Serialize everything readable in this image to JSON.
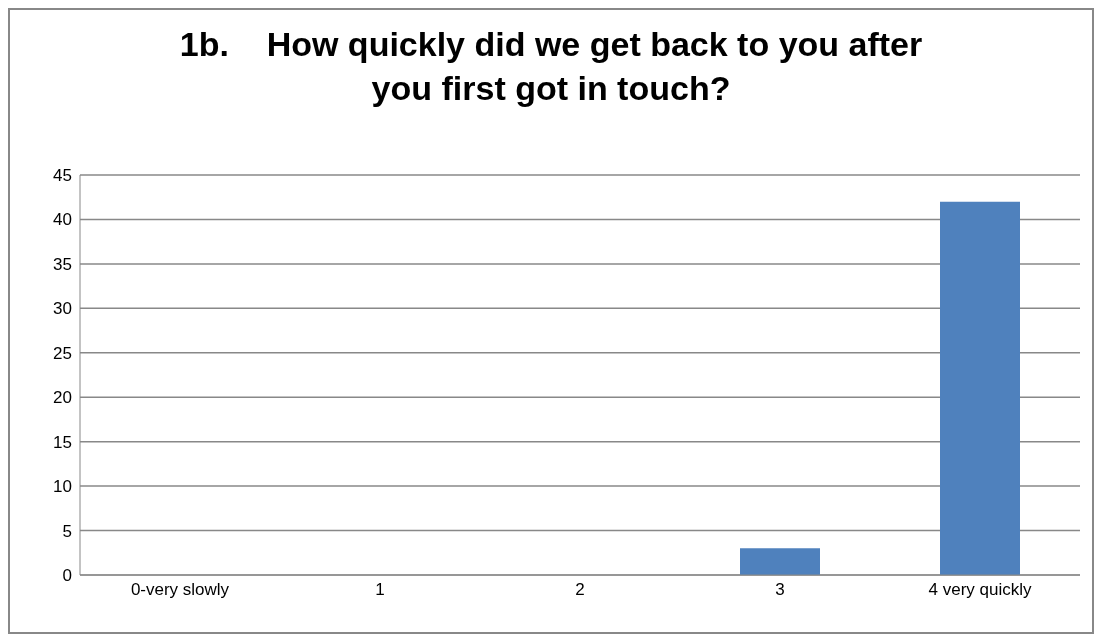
{
  "chart_data": {
    "type": "bar",
    "title": "1b.    How quickly did we get back to you after you first got in touch?",
    "categories": [
      "0-very slowly",
      "1",
      "2",
      "3",
      "4 very quickly"
    ],
    "values": [
      0,
      0,
      0,
      3,
      42
    ],
    "color": "#4f81bd",
    "ylim": [
      0,
      45
    ],
    "yticks": [
      0,
      5,
      10,
      15,
      20,
      25,
      30,
      35,
      40,
      45
    ],
    "grid": "y"
  }
}
